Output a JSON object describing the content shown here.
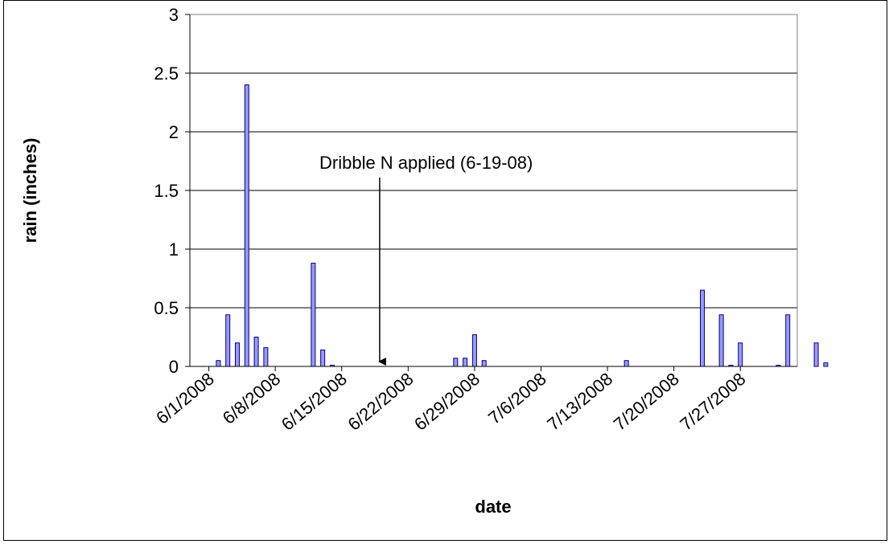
{
  "chart_data": {
    "type": "bar",
    "xlabel": "date",
    "ylabel": "rain (inches)",
    "ylim": [
      0,
      3
    ],
    "yticks": [
      "0",
      "0.5",
      "1",
      "1.5",
      "2",
      "2.5",
      "3"
    ],
    "x_range": [
      "2008-05-30",
      "2008-08-02"
    ],
    "x_tick_labels": [
      "6/1/2008",
      "6/8/2008",
      "6/15/2008",
      "6/22/2008",
      "6/29/2008",
      "7/6/2008",
      "7/13/2008",
      "7/20/2008",
      "7/27/2008"
    ],
    "grid": "horizontal",
    "colors": {
      "bar_fill": "#9999ff",
      "bar_stroke": "#000080",
      "grid": "#000000"
    },
    "series": [
      {
        "x": [
          "2008-06-02",
          "2008-06-03",
          "2008-06-04",
          "2008-06-05",
          "2008-06-06",
          "2008-06-07",
          "2008-06-12",
          "2008-06-13",
          "2008-06-14",
          "2008-06-27",
          "2008-06-28",
          "2008-06-29",
          "2008-06-30",
          "2008-07-15",
          "2008-07-23",
          "2008-07-25",
          "2008-07-26",
          "2008-07-27",
          "2008-07-31",
          "2008-08-01",
          "2008-08-04",
          "2008-08-05"
        ],
        "values": [
          0.05,
          0.44,
          0.2,
          2.4,
          0.25,
          0.16,
          0.88,
          0.14,
          0.01,
          0.07,
          0.07,
          0.27,
          0.05,
          0.05,
          0.65,
          0.44,
          0.01,
          0.2,
          0.01,
          0.44,
          0.2,
          0.03
        ]
      }
    ],
    "annotation": {
      "text": "Dribble N applied (6-19-08)",
      "x": "2008-06-19",
      "y": 0
    }
  }
}
